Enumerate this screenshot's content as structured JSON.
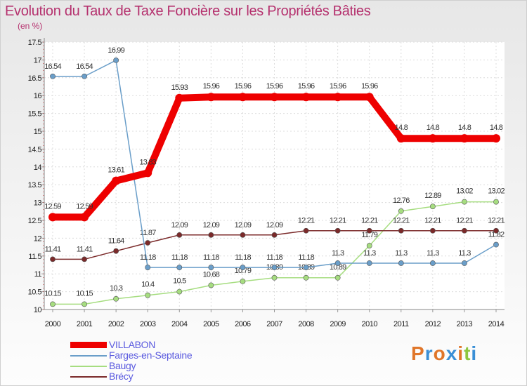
{
  "title": "Evolution du Taux de Taxe Foncière sur les Propriétés Bâties",
  "unit": "(en %)",
  "brand": {
    "text": "Proxiti",
    "colors": [
      "#e0762a",
      "#3a8fd6",
      "#e0762a",
      "#3a8fd6",
      "#e0762a",
      "#8dc63f",
      "#3a8fd6"
    ]
  },
  "chart_data": {
    "type": "line",
    "title": "Evolution du Taux de Taxe Foncière sur les Propriétés Bâties",
    "ylabel": "(en %)",
    "ylim": [
      10,
      17.5
    ],
    "yticks": [
      "10",
      "10.5",
      "11",
      "11.5",
      "12",
      "12.5",
      "13",
      "13.5",
      "14",
      "14.5",
      "15",
      "15.5",
      "16",
      "16.5",
      "17",
      "17.5"
    ],
    "categories": [
      "2000",
      "2001",
      "2002",
      "2003",
      "2004",
      "2005",
      "2006",
      "2007",
      "2008",
      "2009",
      "2010",
      "2011",
      "2012",
      "2013",
      "2014"
    ],
    "grid": true,
    "legend_position": "bottom-left",
    "series": [
      {
        "name": "VILLABON",
        "color": "#ee0000",
        "values": [
          12.59,
          12.59,
          13.61,
          13.83,
          15.93,
          15.96,
          15.96,
          15.96,
          15.96,
          15.96,
          15.96,
          14.8,
          14.8,
          14.8,
          14.8
        ],
        "labels": [
          "12.59",
          "12.59",
          "13.61",
          "13.83",
          "15.93",
          "15.96",
          "15.96",
          "15.96",
          "15.96",
          "15.96",
          "15.96",
          "14.8",
          "14.8",
          "14.8",
          "14.8"
        ]
      },
      {
        "name": "Farges-en-Septaine",
        "color": "#6a9ec9",
        "values": [
          16.54,
          16.54,
          16.99,
          11.18,
          11.18,
          11.18,
          11.18,
          11.18,
          11.18,
          11.3,
          11.3,
          11.3,
          11.3,
          11.3,
          11.82
        ],
        "labels": [
          "16.54",
          "16.54",
          "16.99",
          "11.18",
          "11.18",
          "11.18",
          "11.18",
          "11.18",
          "11.18",
          "11.3",
          "11.3",
          "11.3",
          "11.3",
          "11.3",
          "11.82"
        ]
      },
      {
        "name": "Baugy",
        "color": "#a6dd80",
        "values": [
          10.15,
          10.15,
          10.3,
          10.4,
          10.5,
          10.68,
          10.79,
          10.89,
          10.89,
          10.89,
          11.79,
          12.76,
          12.89,
          13.02,
          13.02
        ],
        "labels": [
          "10.15",
          "10.15",
          "10.3",
          "10.4",
          "10.5",
          "10.68",
          "10.79",
          "10.89",
          "10.89",
          "10.89",
          "11.79",
          "12.76",
          "12.89",
          "13.02",
          "13.02"
        ]
      },
      {
        "name": "Brécy",
        "color": "#7b2a2a",
        "values": [
          11.41,
          11.41,
          11.64,
          11.87,
          12.09,
          12.09,
          12.09,
          12.09,
          12.21,
          12.21,
          12.21,
          12.21,
          12.21,
          12.21,
          12.21
        ],
        "labels": [
          "11.41",
          "11.41",
          "11.64",
          "11.87",
          "12.09",
          "12.09",
          "12.09",
          "12.09",
          "12.21",
          "12.21",
          "12.21",
          "12.21",
          "12.21",
          "12.21",
          "12.21"
        ]
      }
    ]
  }
}
